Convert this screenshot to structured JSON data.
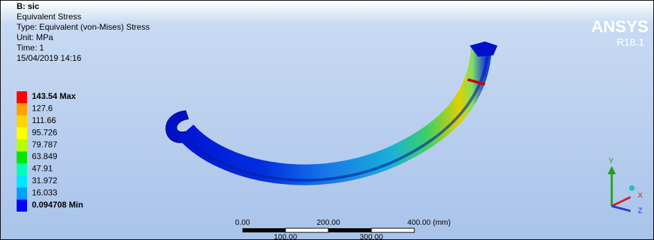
{
  "header": {
    "title": "B: sic",
    "lines": [
      "Equivalent Stress",
      "Type: Equivalent (von-Mises) Stress",
      "Unit: MPa",
      "Time: 1",
      "15/04/2019 14:16"
    ]
  },
  "legend": {
    "labels": [
      "143.54 Max",
      "127.6",
      "111.66",
      "95.726",
      "79.787",
      "63.849",
      "47.91",
      "31.972",
      "16.033",
      "0.094708 Min"
    ],
    "colors": [
      "#ff0000",
      "#ffa000",
      "#ffd700",
      "#ffff00",
      "#b4ff00",
      "#00e600",
      "#00ffb4",
      "#00e6ff",
      "#00a0ff",
      "#0000ff"
    ]
  },
  "logo": {
    "name": "ANSYS",
    "version": "R18.1"
  },
  "scale_bar": {
    "top_labels": [
      "0.00",
      "200.00",
      "400.00 (mm)"
    ],
    "bottom_labels": [
      "100.00",
      "300.00"
    ]
  },
  "triad": {
    "x": "X",
    "y": "Y",
    "z": "Z"
  }
}
